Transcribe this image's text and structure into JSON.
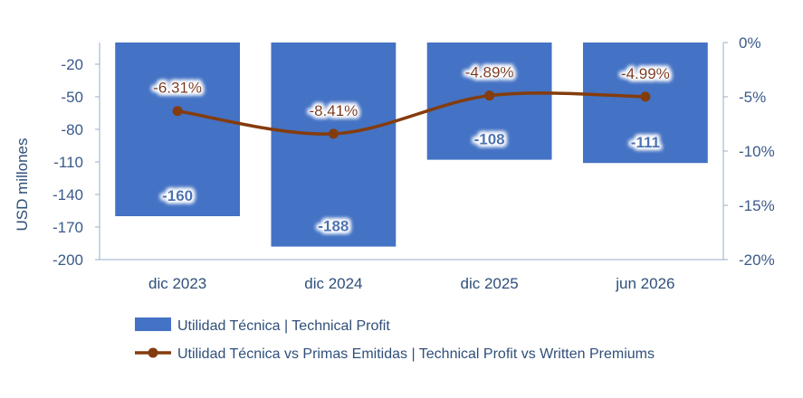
{
  "chart_data": {
    "type": "bar",
    "categories": [
      "dic 2023",
      "dic 2024",
      "dic 2025",
      "jun 2026"
    ],
    "series": [
      {
        "name": "Utilidad Técnica | Technical Profit",
        "kind": "bar",
        "axis": "left",
        "values": [
          -160,
          -188,
          -108,
          -111
        ],
        "labels": [
          "-160",
          "-188",
          "-108",
          "-111"
        ],
        "color": "#4472c4"
      },
      {
        "name": "Utilidad Técnica vs Primas Emitidas | Technical Profit vs Written Premiums",
        "kind": "line",
        "axis": "right",
        "values": [
          -6.31,
          -8.41,
          -4.89,
          -4.99
        ],
        "labels": [
          "-6.31%",
          "-8.41%",
          "-4.89%",
          "-4.99%"
        ],
        "color": "#843c0c"
      }
    ],
    "ylabel": "USD millones",
    "ylim": [
      -200,
      0
    ],
    "yticks": [
      -20,
      -50,
      -80,
      -110,
      -140,
      -170,
      -200
    ],
    "y2lim": [
      -20,
      0
    ],
    "y2ticks": [
      "0%",
      "-5%",
      "-10%",
      "-15%",
      "-20%"
    ],
    "y2values": [
      0,
      -5,
      -10,
      -15,
      -20
    ],
    "legend_position": "bottom",
    "grid": false
  }
}
